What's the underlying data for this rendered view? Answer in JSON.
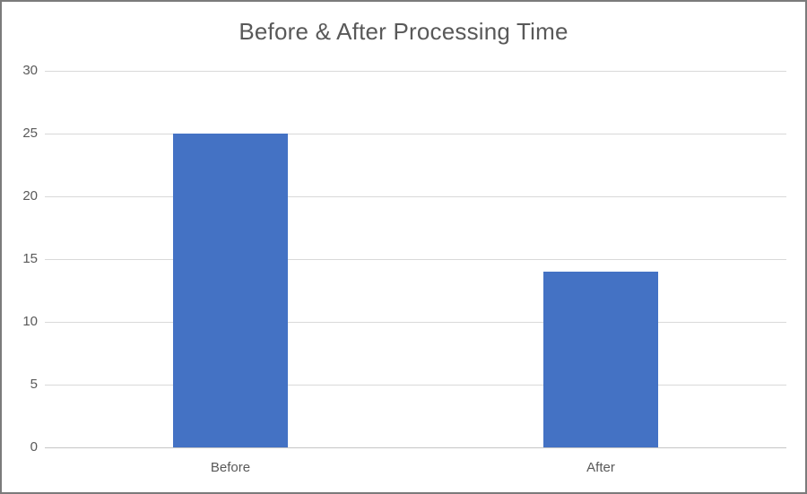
{
  "window": {
    "background_color": "#ffffff",
    "border_color": "#7b7b7b"
  },
  "chart_data": {
    "type": "bar",
    "title": "Before & After Processing Time",
    "categories": [
      "Before",
      "After"
    ],
    "values": [
      25,
      14
    ],
    "xlabel": "",
    "ylabel": "",
    "ylim": [
      0,
      30
    ],
    "ytick_interval": 5,
    "yticks": [
      0,
      5,
      10,
      15,
      20,
      25,
      30
    ],
    "grid": true,
    "legend": "none",
    "bar_color": "#4472c4",
    "title_color": "#595959",
    "tick_label_color": "#595959",
    "gridline_color": "#d9d9d9",
    "axis_line_color": "#c6c6c6",
    "bar_width_fraction": 0.31
  }
}
